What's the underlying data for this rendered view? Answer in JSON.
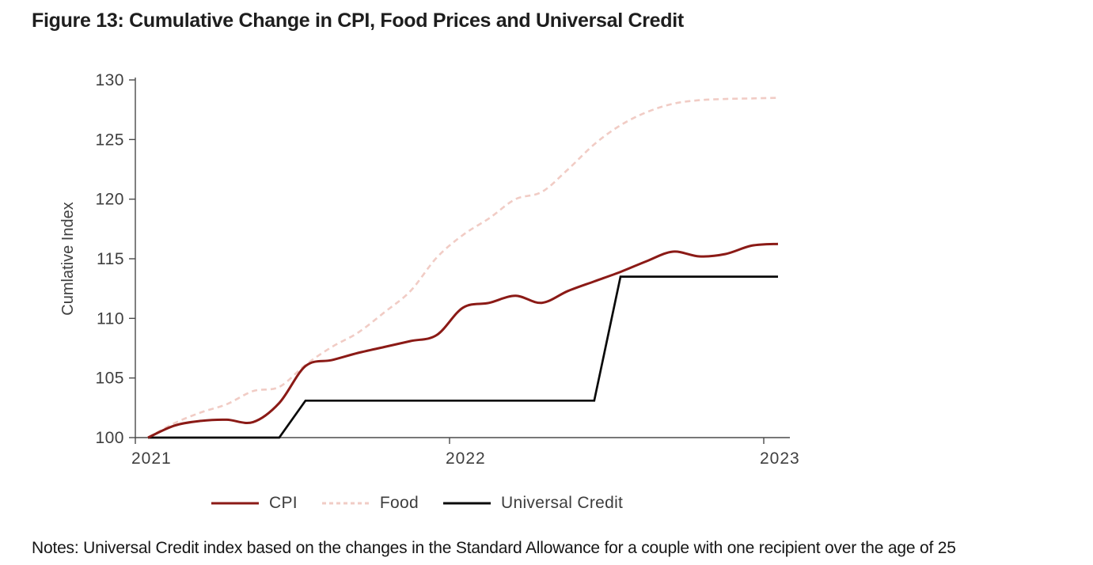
{
  "figure": {
    "title": "Figure 13: Cumulative Change in CPI, Food Prices and Universal Credit",
    "notes": "Notes: Universal Credit index based on the changes in the Standard Allowance for a couple with one recipient over the age of 25"
  },
  "chart_data": {
    "type": "line",
    "title": "Figure 13: Cumulative Change in CPI, Food Prices and Universal Credit",
    "xlabel": "",
    "ylabel": "Cumlative Index",
    "ylim": [
      100,
      130
    ],
    "y_ticks": [
      100,
      105,
      110,
      115,
      120,
      125,
      130
    ],
    "x_tick_labels": [
      "2021",
      "2022",
      "2023"
    ],
    "grid": false,
    "legend_position": "bottom",
    "x": [
      "Jan 2021",
      "Feb 2021",
      "Mar 2021",
      "Apr 2021",
      "May 2021",
      "Jun 2021",
      "Jul 2021",
      "Aug 2021",
      "Sep 2021",
      "Oct 2021",
      "Nov 2021",
      "Dec 2021",
      "Jan 2022",
      "Feb 2022",
      "Mar 2022",
      "Apr 2022",
      "May 2022",
      "Jun 2022",
      "Jul 2022",
      "Aug 2022",
      "Sep 2022",
      "Oct 2022",
      "Nov 2022",
      "Dec 2022",
      "Jan 2023"
    ],
    "series": [
      {
        "name": "CPI",
        "color": "#8B1A16",
        "line_style": "solid",
        "interpolation": "smooth",
        "values": [
          100,
          101.0,
          101.4,
          101.5,
          101.3,
          102.9,
          106.0,
          106.5,
          107.1,
          107.6,
          108.1,
          108.6,
          110.9,
          111.3,
          111.9,
          111.3,
          112.3,
          113.1,
          113.9,
          114.8,
          115.6,
          115.2,
          115.4,
          116.1,
          116.25
        ]
      },
      {
        "name": "Food",
        "color": "#F1CCC5",
        "line_style": "dashed",
        "interpolation": "smooth",
        "values": [
          100,
          101.2,
          102.1,
          102.8,
          103.9,
          104.25,
          106.1,
          107.6,
          108.8,
          110.5,
          112.3,
          115.1,
          117.0,
          118.4,
          120.0,
          120.6,
          122.5,
          124.6,
          126.2,
          127.3,
          128.0,
          128.3,
          128.4,
          128.45,
          128.5
        ]
      },
      {
        "name": "Universal Credit",
        "color": "#0a0a0a",
        "line_style": "solid",
        "interpolation": "linear",
        "values": [
          100,
          100,
          100,
          100,
          100,
          100,
          103.1,
          103.1,
          103.1,
          103.1,
          103.1,
          103.1,
          103.1,
          103.1,
          103.1,
          103.1,
          103.1,
          103.1,
          113.5,
          113.5,
          113.5,
          113.5,
          113.5,
          113.5,
          113.5
        ]
      }
    ]
  },
  "colors": {
    "cpi_line": "#8B1A16",
    "food_line": "#F1CCC5",
    "uc_line": "#0a0a0a",
    "axis": "#4a4a4a",
    "tick_text": "#3f3f3f",
    "title_text": "#1e1e1e",
    "notes_text": "#161616"
  }
}
